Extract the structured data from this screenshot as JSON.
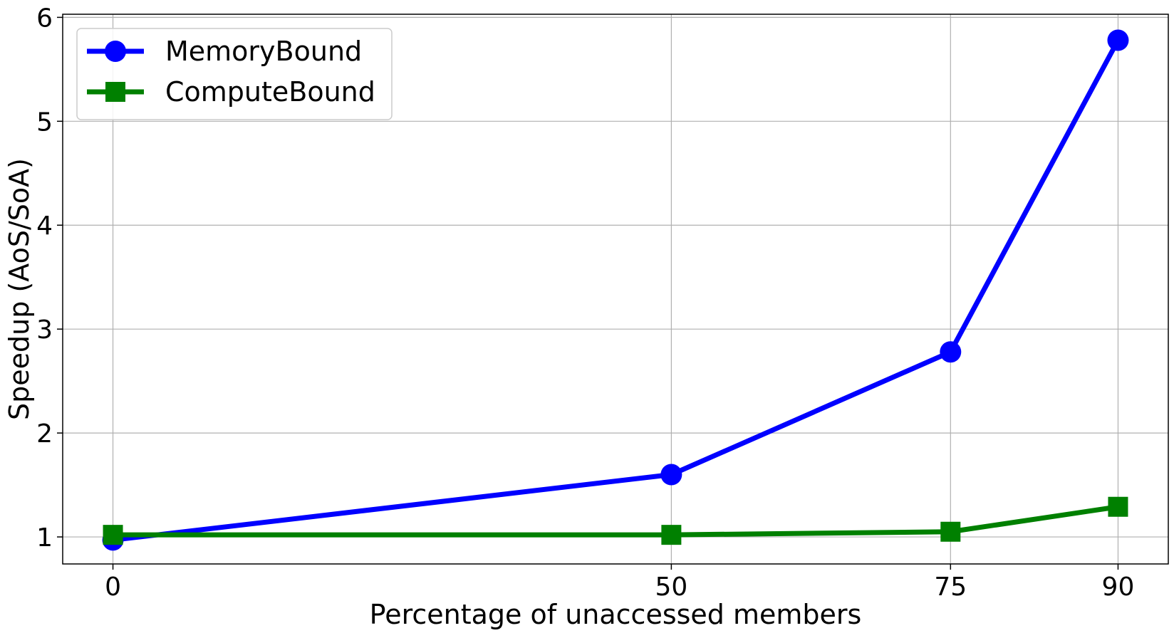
{
  "chart_data": {
    "type": "line",
    "title": "",
    "xlabel": "Percentage of unaccessed members",
    "ylabel": "Speedup (AoS/SoA)",
    "x": [
      0,
      50,
      75,
      90
    ],
    "x_tick_labels": [
      "0",
      "50",
      "75",
      "90"
    ],
    "xlim": [
      -4.5,
      94.5
    ],
    "ylim": [
      0.74,
      6.03
    ],
    "y_ticks": [
      1,
      2,
      3,
      4,
      5,
      6
    ],
    "y_tick_labels": [
      "1",
      "2",
      "3",
      "4",
      "5",
      "6"
    ],
    "grid": true,
    "legend_position": "upper-left",
    "series": [
      {
        "name": "MemoryBound",
        "values": [
          0.97,
          1.6,
          2.78,
          5.78
        ],
        "color": "#0000ff",
        "marker": "circle"
      },
      {
        "name": "ComputeBound",
        "values": [
          1.02,
          1.02,
          1.05,
          1.29
        ],
        "color": "#008000",
        "marker": "square"
      }
    ]
  }
}
